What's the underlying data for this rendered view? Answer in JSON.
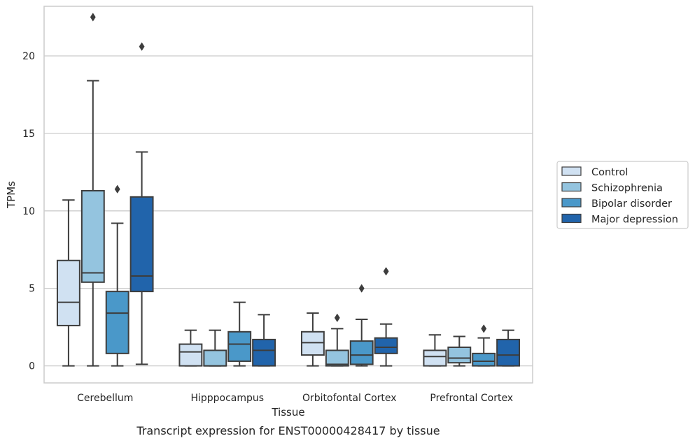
{
  "chart_data": {
    "type": "box",
    "xlabel": "Tissue",
    "ylabel": "TPMs",
    "caption": "Transcript expression for ENST00000428417 by tissue",
    "ylim": [
      -1.1,
      23.2
    ],
    "yticks": [
      0,
      5,
      10,
      15,
      20
    ],
    "grid": "horizontal",
    "legend_position": "right",
    "categories": [
      "Cerebellum",
      "Hipppocampus",
      "Orbitofontal Cortex",
      "Prefrontal Cortex"
    ],
    "series": [
      {
        "name": "Control",
        "color": "#d0e1f2",
        "boxes": [
          {
            "whisker_low": 0,
            "q1": 2.6,
            "median": 4.1,
            "q3": 6.8,
            "whisker_high": 10.7,
            "outliers": []
          },
          {
            "whisker_low": 0,
            "q1": 0,
            "median": 0.9,
            "q3": 1.4,
            "whisker_high": 2.3,
            "outliers": []
          },
          {
            "whisker_low": 0,
            "q1": 0.7,
            "median": 1.5,
            "q3": 2.2,
            "whisker_high": 3.4,
            "outliers": []
          },
          {
            "whisker_low": 0,
            "q1": 0,
            "median": 0.6,
            "q3": 1.0,
            "whisker_high": 2.0,
            "outliers": []
          }
        ]
      },
      {
        "name": "Schizophrenia",
        "color": "#94c4df",
        "boxes": [
          {
            "whisker_low": 0,
            "q1": 5.4,
            "median": 6.0,
            "q3": 11.3,
            "whisker_high": 18.4,
            "outliers": [
              22.5
            ]
          },
          {
            "whisker_low": 0,
            "q1": 0,
            "median": 0,
            "q3": 1.0,
            "whisker_high": 2.3,
            "outliers": []
          },
          {
            "whisker_low": 0,
            "q1": 0,
            "median": 0.1,
            "q3": 1.0,
            "whisker_high": 2.4,
            "outliers": [
              3.1
            ]
          },
          {
            "whisker_low": 0,
            "q1": 0.2,
            "median": 0.5,
            "q3": 1.2,
            "whisker_high": 1.9,
            "outliers": []
          }
        ]
      },
      {
        "name": "Bipolar disorder",
        "color": "#4a98c9",
        "boxes": [
          {
            "whisker_low": 0,
            "q1": 0.8,
            "median": 3.4,
            "q3": 4.8,
            "whisker_high": 9.2,
            "outliers": [
              11.4
            ]
          },
          {
            "whisker_low": 0,
            "q1": 0.3,
            "median": 1.4,
            "q3": 2.2,
            "whisker_high": 4.1,
            "outliers": []
          },
          {
            "whisker_low": 0,
            "q1": 0.1,
            "median": 0.7,
            "q3": 1.6,
            "whisker_high": 3.0,
            "outliers": [
              5.0
            ]
          },
          {
            "whisker_low": 0,
            "q1": 0,
            "median": 0.3,
            "q3": 0.8,
            "whisker_high": 1.8,
            "outliers": [
              2.4
            ]
          }
        ]
      },
      {
        "name": "Major depression",
        "color": "#2164ab",
        "boxes": [
          {
            "whisker_low": 0.1,
            "q1": 4.8,
            "median": 5.8,
            "q3": 10.9,
            "whisker_high": 13.8,
            "outliers": [
              20.6
            ]
          },
          {
            "whisker_low": 0,
            "q1": 0,
            "median": 1.0,
            "q3": 1.7,
            "whisker_high": 3.3,
            "outliers": []
          },
          {
            "whisker_low": 0,
            "q1": 0.8,
            "median": 1.2,
            "q3": 1.8,
            "whisker_high": 2.7,
            "outliers": [
              6.1
            ]
          },
          {
            "whisker_low": 0,
            "q1": 0,
            "median": 0.7,
            "q3": 1.7,
            "whisker_high": 2.3,
            "outliers": []
          }
        ]
      }
    ]
  }
}
